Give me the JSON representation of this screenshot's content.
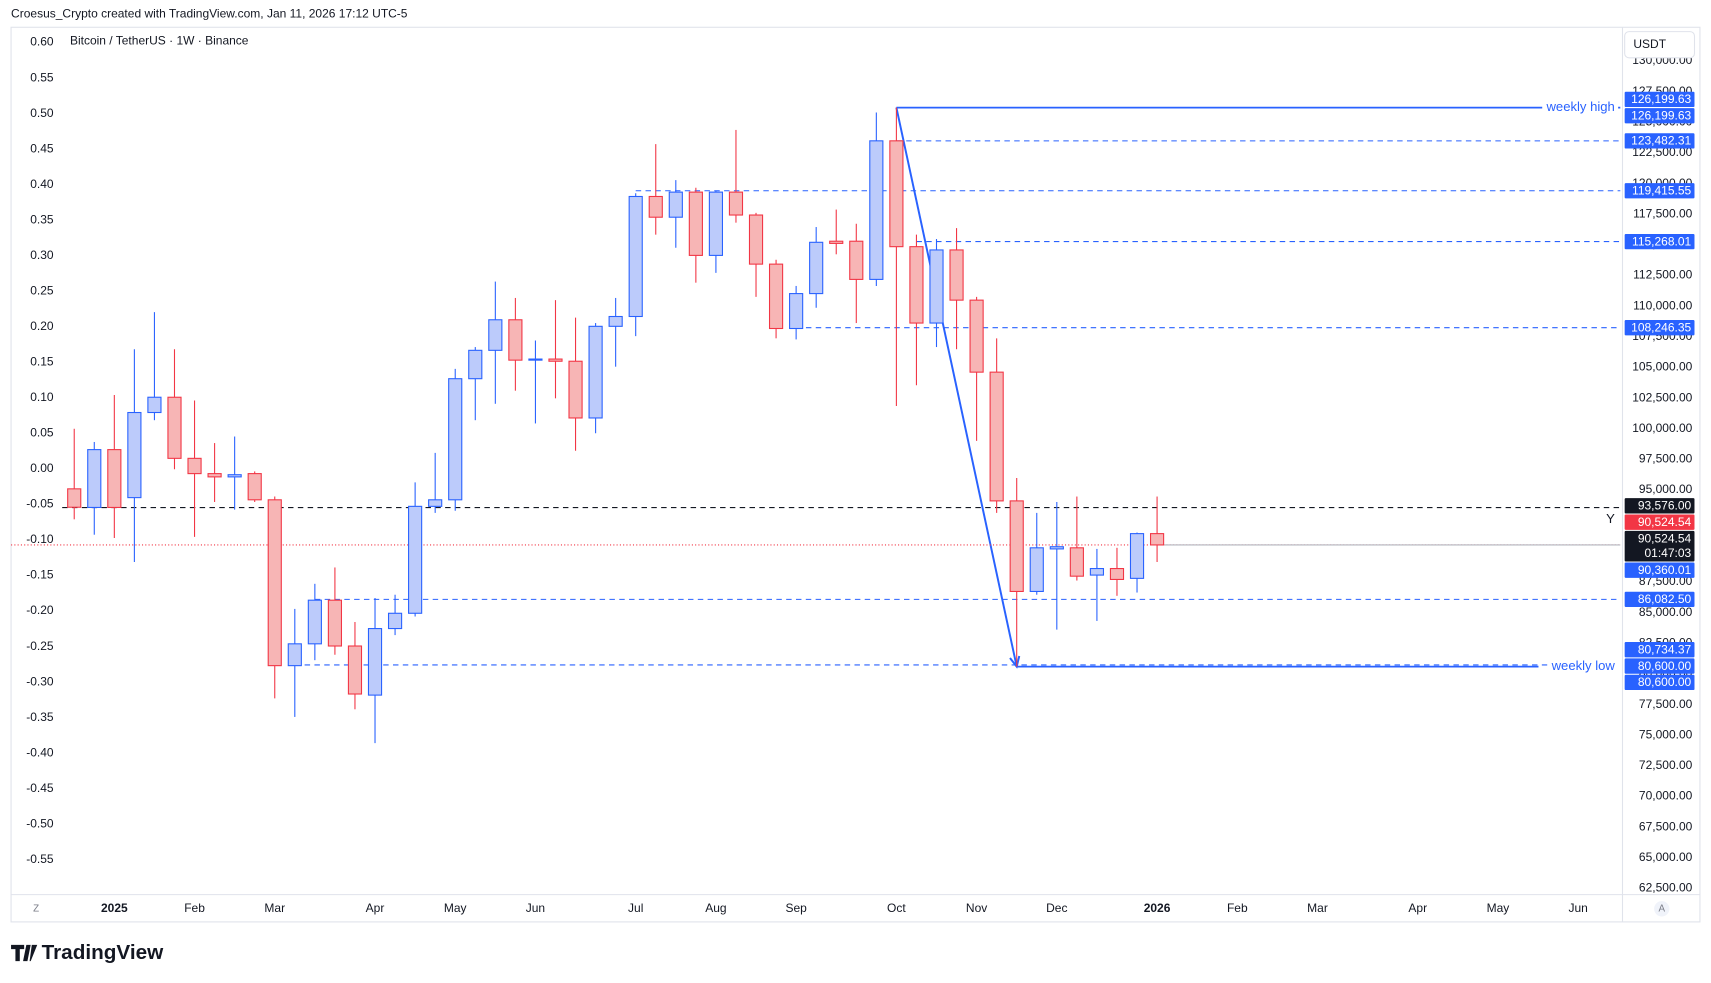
{
  "header": "Croesus_Crypto created with TradingView.com, Jan 11, 2026 17:12 UTC-5",
  "brand": "TradingView",
  "chart_data": {
    "type": "candlestick",
    "title": "Bitcoin / TetherUS · 1W · Binance",
    "currency": "USDT",
    "log_button": "Z",
    "auto_button": "A",
    "scale_marker": "Y",
    "up_color": "#2962ff",
    "up_fill": "#bccbfb",
    "down_color": "#f23645",
    "down_fill": "#f7b5b5",
    "x": [
      0,
      1,
      2,
      3,
      4,
      5,
      6,
      7,
      8,
      9,
      10,
      11,
      12,
      13,
      14,
      15,
      16,
      17,
      18,
      19,
      20,
      21,
      22,
      23,
      24,
      25,
      26,
      27,
      28,
      29,
      30,
      31,
      32,
      33,
      34,
      35,
      36,
      37,
      38,
      39,
      40,
      41,
      42,
      43,
      44,
      45,
      46,
      47,
      48,
      49,
      50,
      51,
      52,
      53,
      54
    ],
    "open": [
      95100,
      93583,
      98300,
      94384,
      101326,
      102572,
      97588,
      96342,
      96075,
      96342,
      94206,
      80678,
      82458,
      86018,
      82280,
      78275,
      83704,
      84950,
      93672,
      94206,
      104085,
      106399,
      108891,
      105598,
      105687,
      105509,
      100881,
      108357,
      109158,
      118948,
      117257,
      119304,
      114142,
      119304,
      117435,
      113430,
      108179,
      111027,
      115299,
      115299,
      112184,
      123487,
      114854,
      108624,
      114587,
      110493,
      104619,
      94117,
      86730,
      90200,
      90290,
      88065,
      88599,
      87798,
      91447
    ],
    "high": [
      100000,
      98923,
      102750,
      106488,
      109514,
      106488,
      102305,
      98834,
      99368,
      96520,
      94473,
      85306,
      87353,
      88688,
      84238,
      86196,
      86463,
      95630,
      98033,
      104886,
      106666,
      112006,
      110671,
      107200,
      110493,
      109069,
      108624,
      110671,
      119215,
      123220,
      120283,
      119660,
      119393,
      124377,
      117613,
      113786,
      111650,
      116456,
      117880,
      116723,
      125801,
      126199.63,
      115833,
      115477,
      116367,
      110760,
      107378,
      95986,
      93138,
      94028,
      94473,
      90200,
      90290,
      91536,
      94473
    ],
    "low": [
      92614,
      91358,
      91091,
      89133,
      100700,
      96698,
      91180,
      94028,
      93405,
      94028,
      78008,
      76495,
      81124,
      81568,
      77118,
      74359,
      83170,
      84683,
      93138,
      93316,
      100700,
      102038,
      103106,
      100435,
      102483,
      98211,
      99635,
      105064,
      107556,
      115834,
      114765,
      111917,
      112718,
      116812,
      110760,
      107378,
      107289,
      109870,
      114231,
      108624,
      111650,
      101860,
      103551,
      106666,
      106488,
      99012,
      93138,
      80600,
      86463,
      83615,
      87620,
      84327,
      86374,
      86641,
      89133
    ],
    "close": [
      93600,
      98300,
      93583,
      101326,
      102572,
      97588,
      96342,
      96075,
      96253,
      94206,
      80678,
      82458,
      86018,
      82280,
      78364,
      83704,
      84950,
      93672,
      94206,
      104085,
      106399,
      108891,
      105598,
      105687,
      105509,
      100881,
      108357,
      109158,
      118948,
      117257,
      119304,
      114142,
      119304,
      117435,
      113430,
      108179,
      111027,
      115210,
      115121,
      112184,
      123487,
      114854,
      108624,
      114587,
      110493,
      104619,
      94117,
      86730,
      90290,
      90379,
      87976,
      88599,
      87709,
      91447,
      90524.54
    ],
    "xlim": [
      -3.15,
      77.1
    ],
    "xticks": [
      {
        "value": 2,
        "label": "2025"
      },
      {
        "value": 6,
        "label": "Feb"
      },
      {
        "value": 10,
        "label": "Mar"
      },
      {
        "value": 15,
        "label": "Apr"
      },
      {
        "value": 19,
        "label": "May"
      },
      {
        "value": 23,
        "label": "Jun"
      },
      {
        "value": 28,
        "label": "Jul"
      },
      {
        "value": 32,
        "label": "Aug"
      },
      {
        "value": 36,
        "label": "Sep"
      },
      {
        "value": 41,
        "label": "Oct"
      },
      {
        "value": 45,
        "label": "Nov"
      },
      {
        "value": 49,
        "label": "Dec"
      },
      {
        "value": 54,
        "label": "2026"
      },
      {
        "value": 58,
        "label": "Feb"
      },
      {
        "value": 62,
        "label": "Mar"
      },
      {
        "value": 67,
        "label": "Apr"
      },
      {
        "value": 71,
        "label": "May"
      },
      {
        "value": 75,
        "label": "Jun"
      }
    ],
    "ylim": [
      62000,
      132750
    ],
    "yticks": [
      {
        "value": 62500,
        "label": "62,500.00"
      },
      {
        "value": 65000,
        "label": "65,000.00"
      },
      {
        "value": 67500,
        "label": "67,500.00"
      },
      {
        "value": 70000,
        "label": "70,000.00"
      },
      {
        "value": 72500,
        "label": "72,500.00"
      },
      {
        "value": 75000,
        "label": "75,000.00"
      },
      {
        "value": 77500,
        "label": "77,500.00"
      },
      {
        "value": 80000,
        "label": "80,000.00"
      },
      {
        "value": 82500,
        "label": "82,500.00"
      },
      {
        "value": 85000,
        "label": "85,000.00"
      },
      {
        "value": 87500,
        "label": "87,500.00"
      },
      {
        "value": 90000,
        "label": "90,000.00"
      },
      {
        "value": 92500,
        "label": "92,500.00"
      },
      {
        "value": 95000,
        "label": "95,000.00"
      },
      {
        "value": 97500,
        "label": "97,500.00"
      },
      {
        "value": 100000,
        "label": "100,000.00"
      },
      {
        "value": 102500,
        "label": "102,500.00"
      },
      {
        "value": 105000,
        "label": "105,000.00"
      },
      {
        "value": 107500,
        "label": "107,500.00"
      },
      {
        "value": 110000,
        "label": "110,000.00"
      },
      {
        "value": 112500,
        "label": "112,500.00"
      },
      {
        "value": 115000,
        "label": "115,000.00"
      },
      {
        "value": 117500,
        "label": "117,500.00"
      },
      {
        "value": 120000,
        "label": "120,000.00"
      },
      {
        "value": 122500,
        "label": "122,500.00"
      },
      {
        "value": 125000,
        "label": "125,000.00"
      },
      {
        "value": 127500,
        "label": "127,500.00"
      },
      {
        "value": 130000,
        "label": "130,000.00"
      }
    ],
    "y2lim": [
      -0.599,
      0.6215
    ],
    "y2ticks": [
      {
        "value": 0.6,
        "label": "0.60"
      },
      {
        "value": 0.55,
        "label": "0.55"
      },
      {
        "value": 0.5,
        "label": "0.50"
      },
      {
        "value": 0.45,
        "label": "0.45"
      },
      {
        "value": 0.4,
        "label": "0.40"
      },
      {
        "value": 0.35,
        "label": "0.35"
      },
      {
        "value": 0.3,
        "label": "0.30"
      },
      {
        "value": 0.25,
        "label": "0.25"
      },
      {
        "value": 0.2,
        "label": "0.20"
      },
      {
        "value": 0.15,
        "label": "0.15"
      },
      {
        "value": 0.1,
        "label": "0.10"
      },
      {
        "value": 0.05,
        "label": "0.05"
      },
      {
        "value": 0,
        "label": "0.00"
      },
      {
        "value": -0.05,
        "label": "-0.05"
      },
      {
        "value": -0.1,
        "label": "-0.10"
      },
      {
        "value": -0.15,
        "label": "-0.15"
      },
      {
        "value": -0.2,
        "label": "-0.20"
      },
      {
        "value": -0.25,
        "label": "-0.25"
      },
      {
        "value": -0.3,
        "label": "-0.30"
      },
      {
        "value": -0.35,
        "label": "-0.35"
      },
      {
        "value": -0.4,
        "label": "-0.40"
      },
      {
        "value": -0.45,
        "label": "-0.45"
      },
      {
        "value": -0.5,
        "label": "-0.50"
      },
      {
        "value": -0.55,
        "label": "-0.55"
      }
    ],
    "levels": [
      {
        "value": 126199.63,
        "style": "solid",
        "color": "#2962ff",
        "text": "weekly high"
      },
      {
        "value": 123482.31,
        "style": "dashed",
        "color": "#2962ff"
      },
      {
        "value": 119415.55,
        "style": "dashed",
        "color": "#2962ff"
      },
      {
        "value": 115268.01,
        "style": "dashed",
        "color": "#2962ff"
      },
      {
        "value": 108246.35,
        "style": "dashed",
        "color": "#2962ff"
      },
      {
        "value": 93576,
        "style": "dashed",
        "color": "#131722"
      },
      {
        "value": 86082.5,
        "style": "dashed",
        "color": "#2962ff"
      },
      {
        "value": 80734.37,
        "style": "dashed",
        "color": "#2962ff"
      },
      {
        "value": 80600,
        "style": "solid",
        "color": "#2962ff",
        "text": "weekly low"
      }
    ],
    "price_labels": [
      {
        "value": 126199.63,
        "label": "126,199.63",
        "color": "#2962ff"
      },
      {
        "value": 126199.63,
        "label": "126,199.63",
        "color": "#2962ff"
      },
      {
        "value": 123482.31,
        "label": "123,482.31",
        "color": "#2962ff"
      },
      {
        "value": 119415.55,
        "label": "119,415.55",
        "color": "#2962ff"
      },
      {
        "value": 115268.01,
        "label": "115,268.01",
        "color": "#2962ff"
      },
      {
        "value": 108246.35,
        "label": "108,246.35",
        "color": "#2962ff"
      },
      {
        "value": 93576,
        "label": "93,576.00",
        "color": "#131722"
      },
      {
        "value": 90524.54,
        "label": "90,524.54",
        "color": "#f23645"
      },
      {
        "value": 90524.54,
        "label": "90,524.54",
        "color": "#131722",
        "countdown": "01:47:03"
      },
      {
        "value": 90360.01,
        "label": "90,360.01",
        "color": "#2962ff"
      },
      {
        "value": 86082.5,
        "label": "86,082.50",
        "color": "#2962ff"
      },
      {
        "value": 80734.37,
        "label": "80,734.37",
        "color": "#2962ff"
      },
      {
        "value": 80600,
        "label": "80,600.00",
        "color": "#2962ff"
      },
      {
        "value": 80600,
        "label": "80,600.00",
        "color": "#2962ff"
      }
    ]
  }
}
